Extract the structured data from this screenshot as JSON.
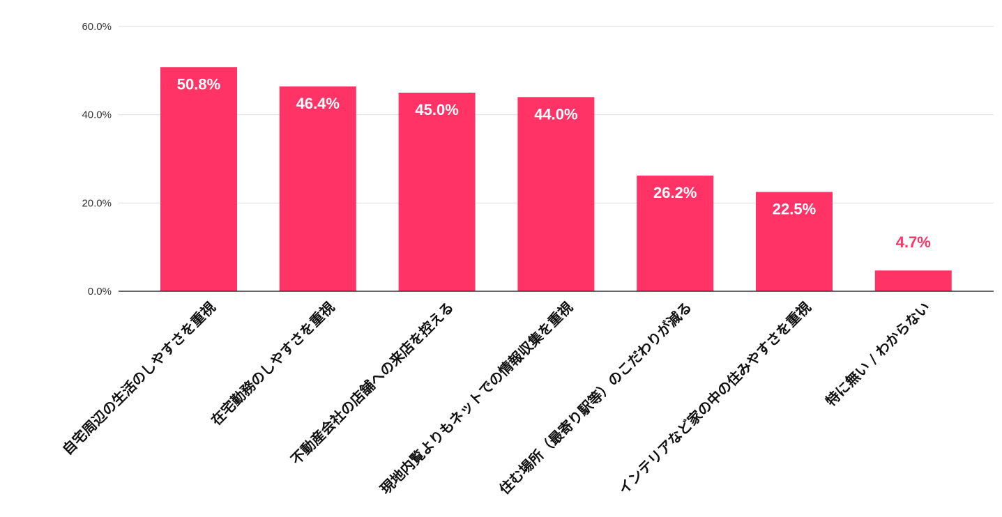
{
  "chart_data": {
    "type": "bar",
    "categories": [
      "自宅周辺の生活のしやすさを重視",
      "在宅勤務のしやすさを重視",
      "不動産会社の店舗への来店を控える",
      "現地内覧よりもネットでの情報収集を重視",
      "住む場所（最寄り駅等）のこだわりが減る",
      "インテリアなど家の中の住みやすさを重視",
      "特に無い / わからない"
    ],
    "values": [
      50.8,
      46.4,
      45.0,
      44.0,
      26.2,
      22.5,
      4.7
    ],
    "value_labels": [
      "50.8%",
      "46.4%",
      "45.0%",
      "44.0%",
      "26.2%",
      "22.5%",
      "4.7%"
    ],
    "ylim": [
      0,
      60
    ],
    "y_ticks": [
      0,
      20,
      40,
      60
    ],
    "y_tick_labels": [
      "0.0%",
      "20.0%",
      "40.0%",
      "60.0%"
    ],
    "grid": true,
    "bar_color": "#ff3366",
    "value_label_inside_color": "#ffffff",
    "value_label_outside_color": "#ff3366",
    "gridline_color": "#dddddd",
    "axis_color": "#333333"
  }
}
